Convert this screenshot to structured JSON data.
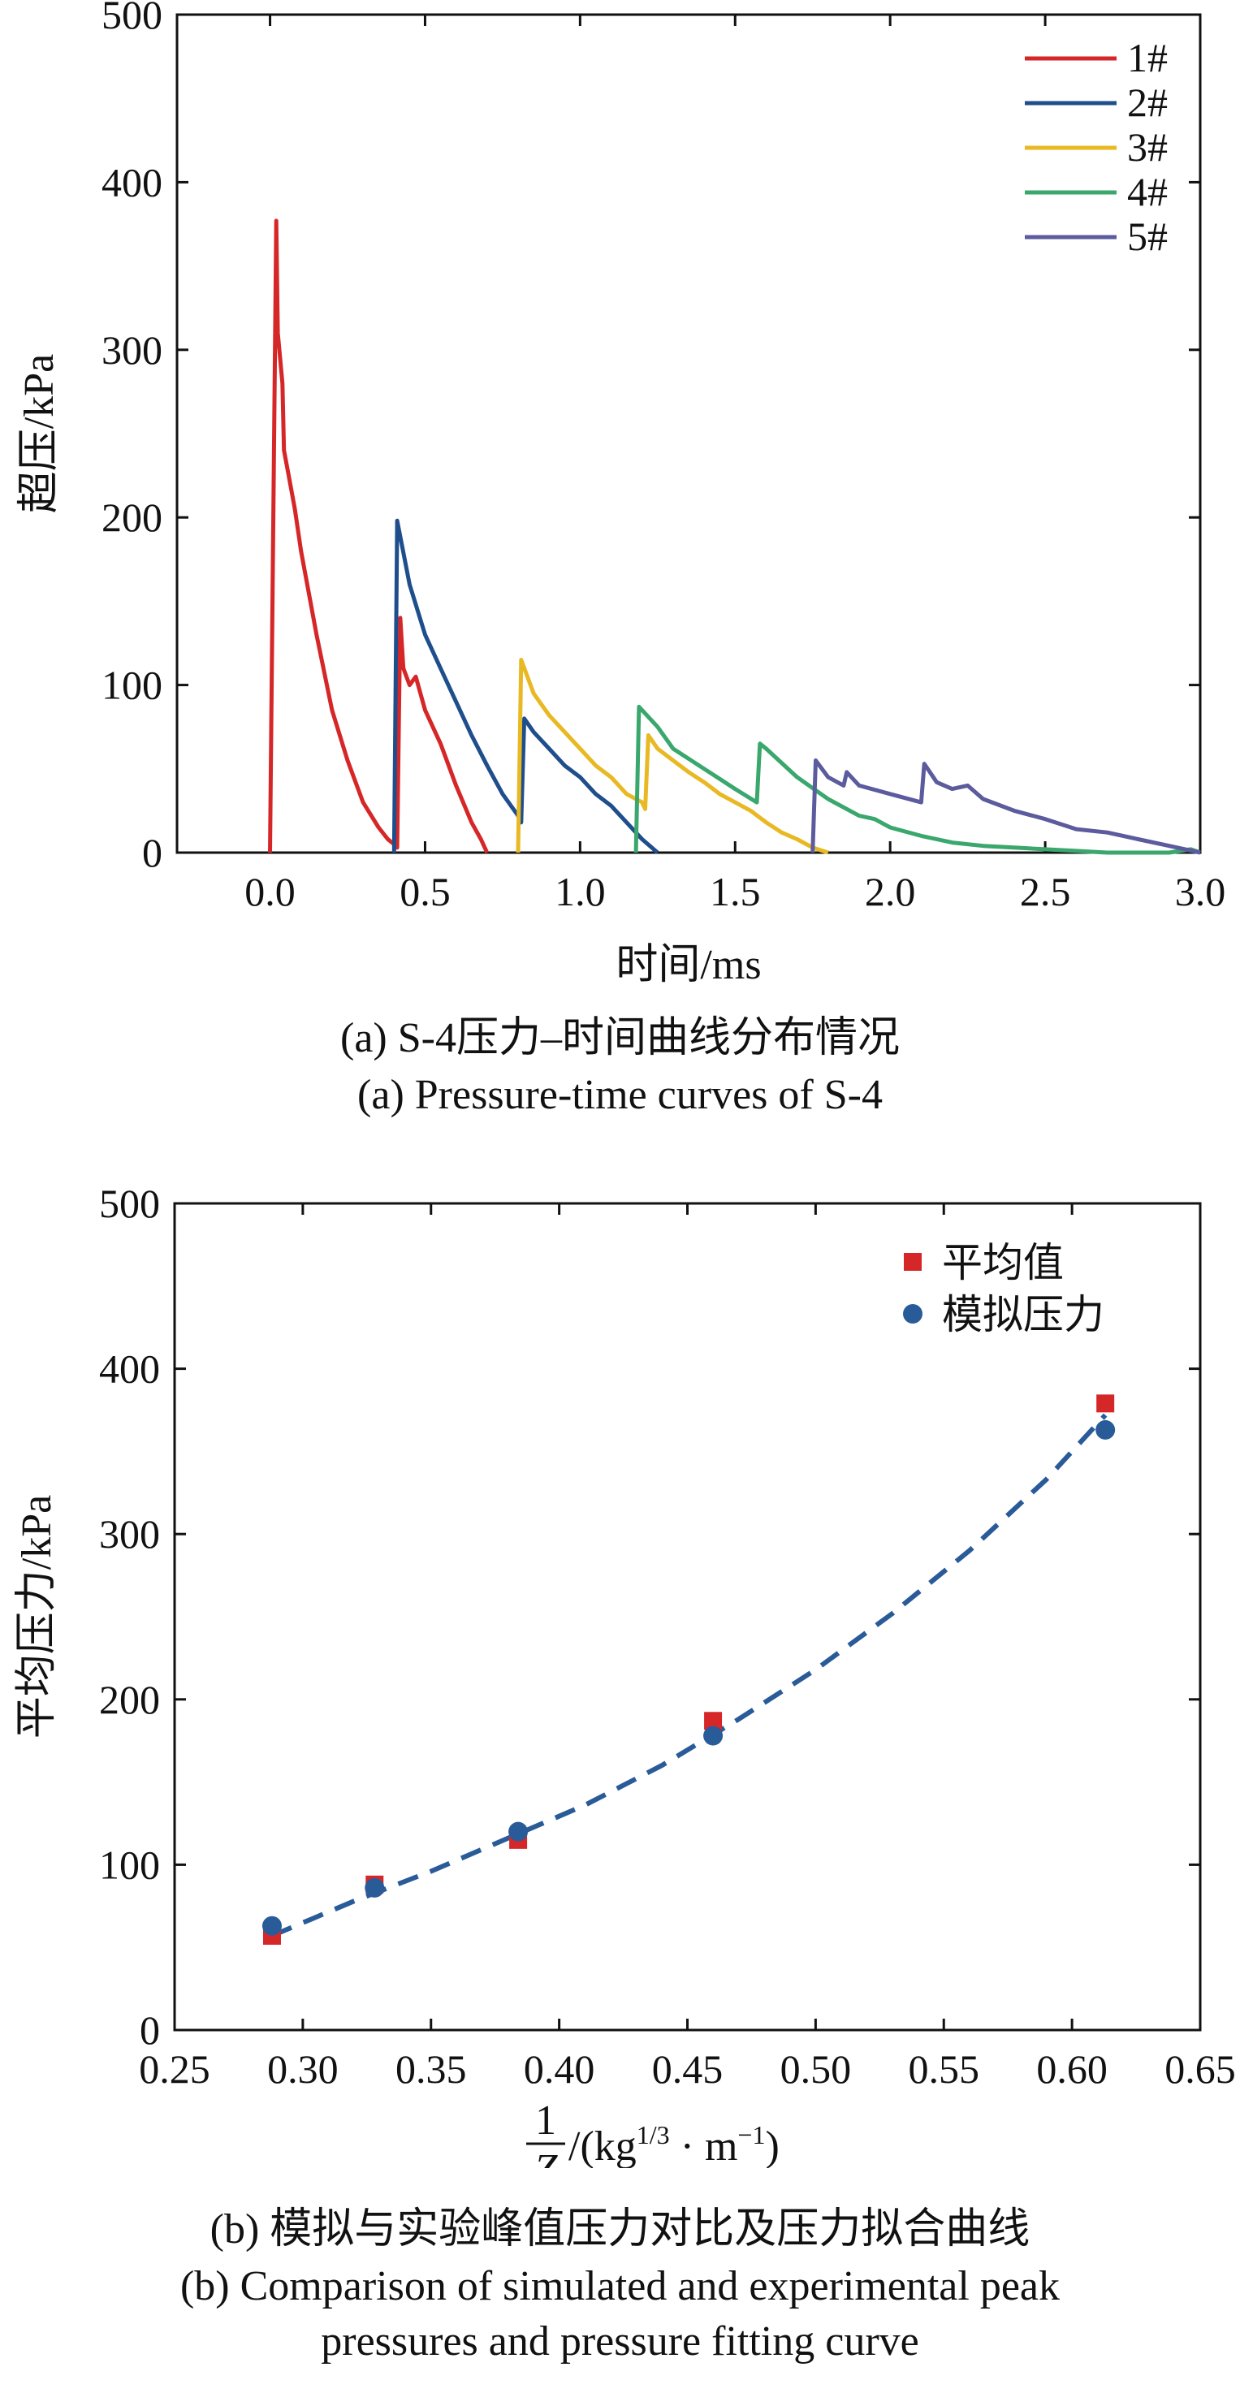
{
  "chart_data": [
    {
      "type": "line",
      "ylabel": "超压/kPa",
      "xlabel": "时间/ms",
      "xlim": [
        -0.3,
        3.0
      ],
      "ylim": [
        0,
        500
      ],
      "xticks": [
        "0.0",
        "0.5",
        "1.0",
        "1.5",
        "2.0",
        "2.5",
        "3.0"
      ],
      "yticks": [
        "0",
        "100",
        "200",
        "300",
        "400",
        "500"
      ],
      "legend_position": "top-right",
      "caption_cn": "(a) S-4压力–时间曲线分布情况",
      "caption_en": "(a) Pressure-time curves of S-4",
      "series": [
        {
          "name": "1#",
          "color": "#d62728",
          "x": [
            0.0,
            0.02,
            0.025,
            0.04,
            0.045,
            0.06,
            0.08,
            0.1,
            0.15,
            0.2,
            0.25,
            0.3,
            0.35,
            0.38,
            0.4,
            0.41,
            0.42,
            0.43,
            0.45,
            0.47,
            0.5,
            0.55,
            0.6,
            0.65,
            0.68,
            0.7
          ],
          "y": [
            0,
            377,
            310,
            280,
            240,
            225,
            205,
            180,
            130,
            85,
            55,
            30,
            15,
            8,
            5,
            3,
            140,
            110,
            100,
            105,
            85,
            65,
            40,
            18,
            8,
            0
          ]
        },
        {
          "name": "2#",
          "color": "#1f4e8c",
          "x": [
            0.4,
            0.41,
            0.45,
            0.5,
            0.55,
            0.6,
            0.65,
            0.7,
            0.75,
            0.8,
            0.81,
            0.82,
            0.85,
            0.9,
            0.95,
            1.0,
            1.05,
            1.1,
            1.15,
            1.2,
            1.25
          ],
          "y": [
            0,
            198,
            160,
            130,
            110,
            90,
            70,
            52,
            35,
            22,
            18,
            80,
            72,
            62,
            52,
            45,
            35,
            28,
            18,
            8,
            0
          ]
        },
        {
          "name": "3#",
          "color": "#e8b923",
          "x": [
            0.8,
            0.81,
            0.85,
            0.9,
            0.95,
            1.0,
            1.05,
            1.1,
            1.15,
            1.2,
            1.21,
            1.22,
            1.25,
            1.3,
            1.35,
            1.4,
            1.45,
            1.5,
            1.55,
            1.6,
            1.65,
            1.7,
            1.75,
            1.8
          ],
          "y": [
            0,
            115,
            95,
            82,
            72,
            62,
            52,
            45,
            35,
            30,
            26,
            70,
            62,
            55,
            48,
            42,
            35,
            30,
            25,
            18,
            12,
            8,
            3,
            0
          ]
        },
        {
          "name": "4#",
          "color": "#3aa76d",
          "x": [
            1.18,
            1.19,
            1.25,
            1.3,
            1.4,
            1.5,
            1.57,
            1.58,
            1.6,
            1.7,
            1.8,
            1.9,
            1.95,
            2.0,
            2.1,
            2.2,
            2.3,
            2.4,
            2.5,
            2.6,
            2.7,
            2.8,
            2.9,
            2.97,
            3.0
          ],
          "y": [
            0,
            87,
            75,
            62,
            50,
            38,
            30,
            65,
            62,
            45,
            32,
            22,
            20,
            15,
            10,
            6,
            4,
            3,
            2,
            1,
            0,
            0,
            0,
            2,
            0
          ]
        },
        {
          "name": "5#",
          "color": "#5b5b9e",
          "x": [
            1.75,
            1.76,
            1.8,
            1.85,
            1.86,
            1.9,
            2.0,
            2.1,
            2.11,
            2.15,
            2.2,
            2.25,
            2.3,
            2.4,
            2.5,
            2.6,
            2.7,
            2.8,
            2.9,
            3.0
          ],
          "y": [
            0,
            55,
            45,
            40,
            48,
            40,
            35,
            30,
            53,
            42,
            38,
            40,
            32,
            25,
            20,
            14,
            12,
            8,
            4,
            0
          ]
        }
      ]
    },
    {
      "type": "scatter",
      "ylabel": "平均压力/kPa",
      "xlabel_fraction_num": "1",
      "xlabel_fraction_den": "Z",
      "xlabel_unit_prefix": "/(kg",
      "xlabel_unit_exp1": "1/3",
      "xlabel_unit_mid": " · m",
      "xlabel_unit_exp2": "−1",
      "xlabel_unit_suffix": ")",
      "xlim": [
        0.25,
        0.65
      ],
      "ylim": [
        0,
        500
      ],
      "xticks": [
        "0.25",
        "0.30",
        "0.35",
        "0.40",
        "0.45",
        "0.50",
        "0.55",
        "0.60",
        "0.65"
      ],
      "yticks": [
        "0",
        "100",
        "200",
        "300",
        "400",
        "500"
      ],
      "legend_position": "top-right",
      "caption_cn": "(b) 模拟与实验峰值压力对比及压力拟合曲线",
      "caption_en_line1": "(b) Comparison of simulated and experimental peak",
      "caption_en_line2": "pressures and pressure fitting curve",
      "series": [
        {
          "name": "平均值",
          "marker": "square",
          "color": "#d62728",
          "x": [
            0.288,
            0.328,
            0.384,
            0.46,
            0.613
          ],
          "y": [
            57,
            88,
            115,
            187,
            379
          ]
        },
        {
          "name": "模拟压力",
          "marker": "circle",
          "color": "#2a5b99",
          "x": [
            0.288,
            0.328,
            0.384,
            0.46,
            0.613
          ],
          "y": [
            63,
            86,
            120,
            178,
            363
          ]
        }
      ],
      "fit_curve": {
        "style": "dashed",
        "color": "#2a5b99",
        "x": [
          0.288,
          0.32,
          0.35,
          0.38,
          0.41,
          0.44,
          0.47,
          0.5,
          0.53,
          0.56,
          0.59,
          0.613
        ],
        "y": [
          57,
          78,
          96,
          116,
          136,
          160,
          188,
          218,
          252,
          290,
          333,
          372
        ]
      }
    }
  ]
}
